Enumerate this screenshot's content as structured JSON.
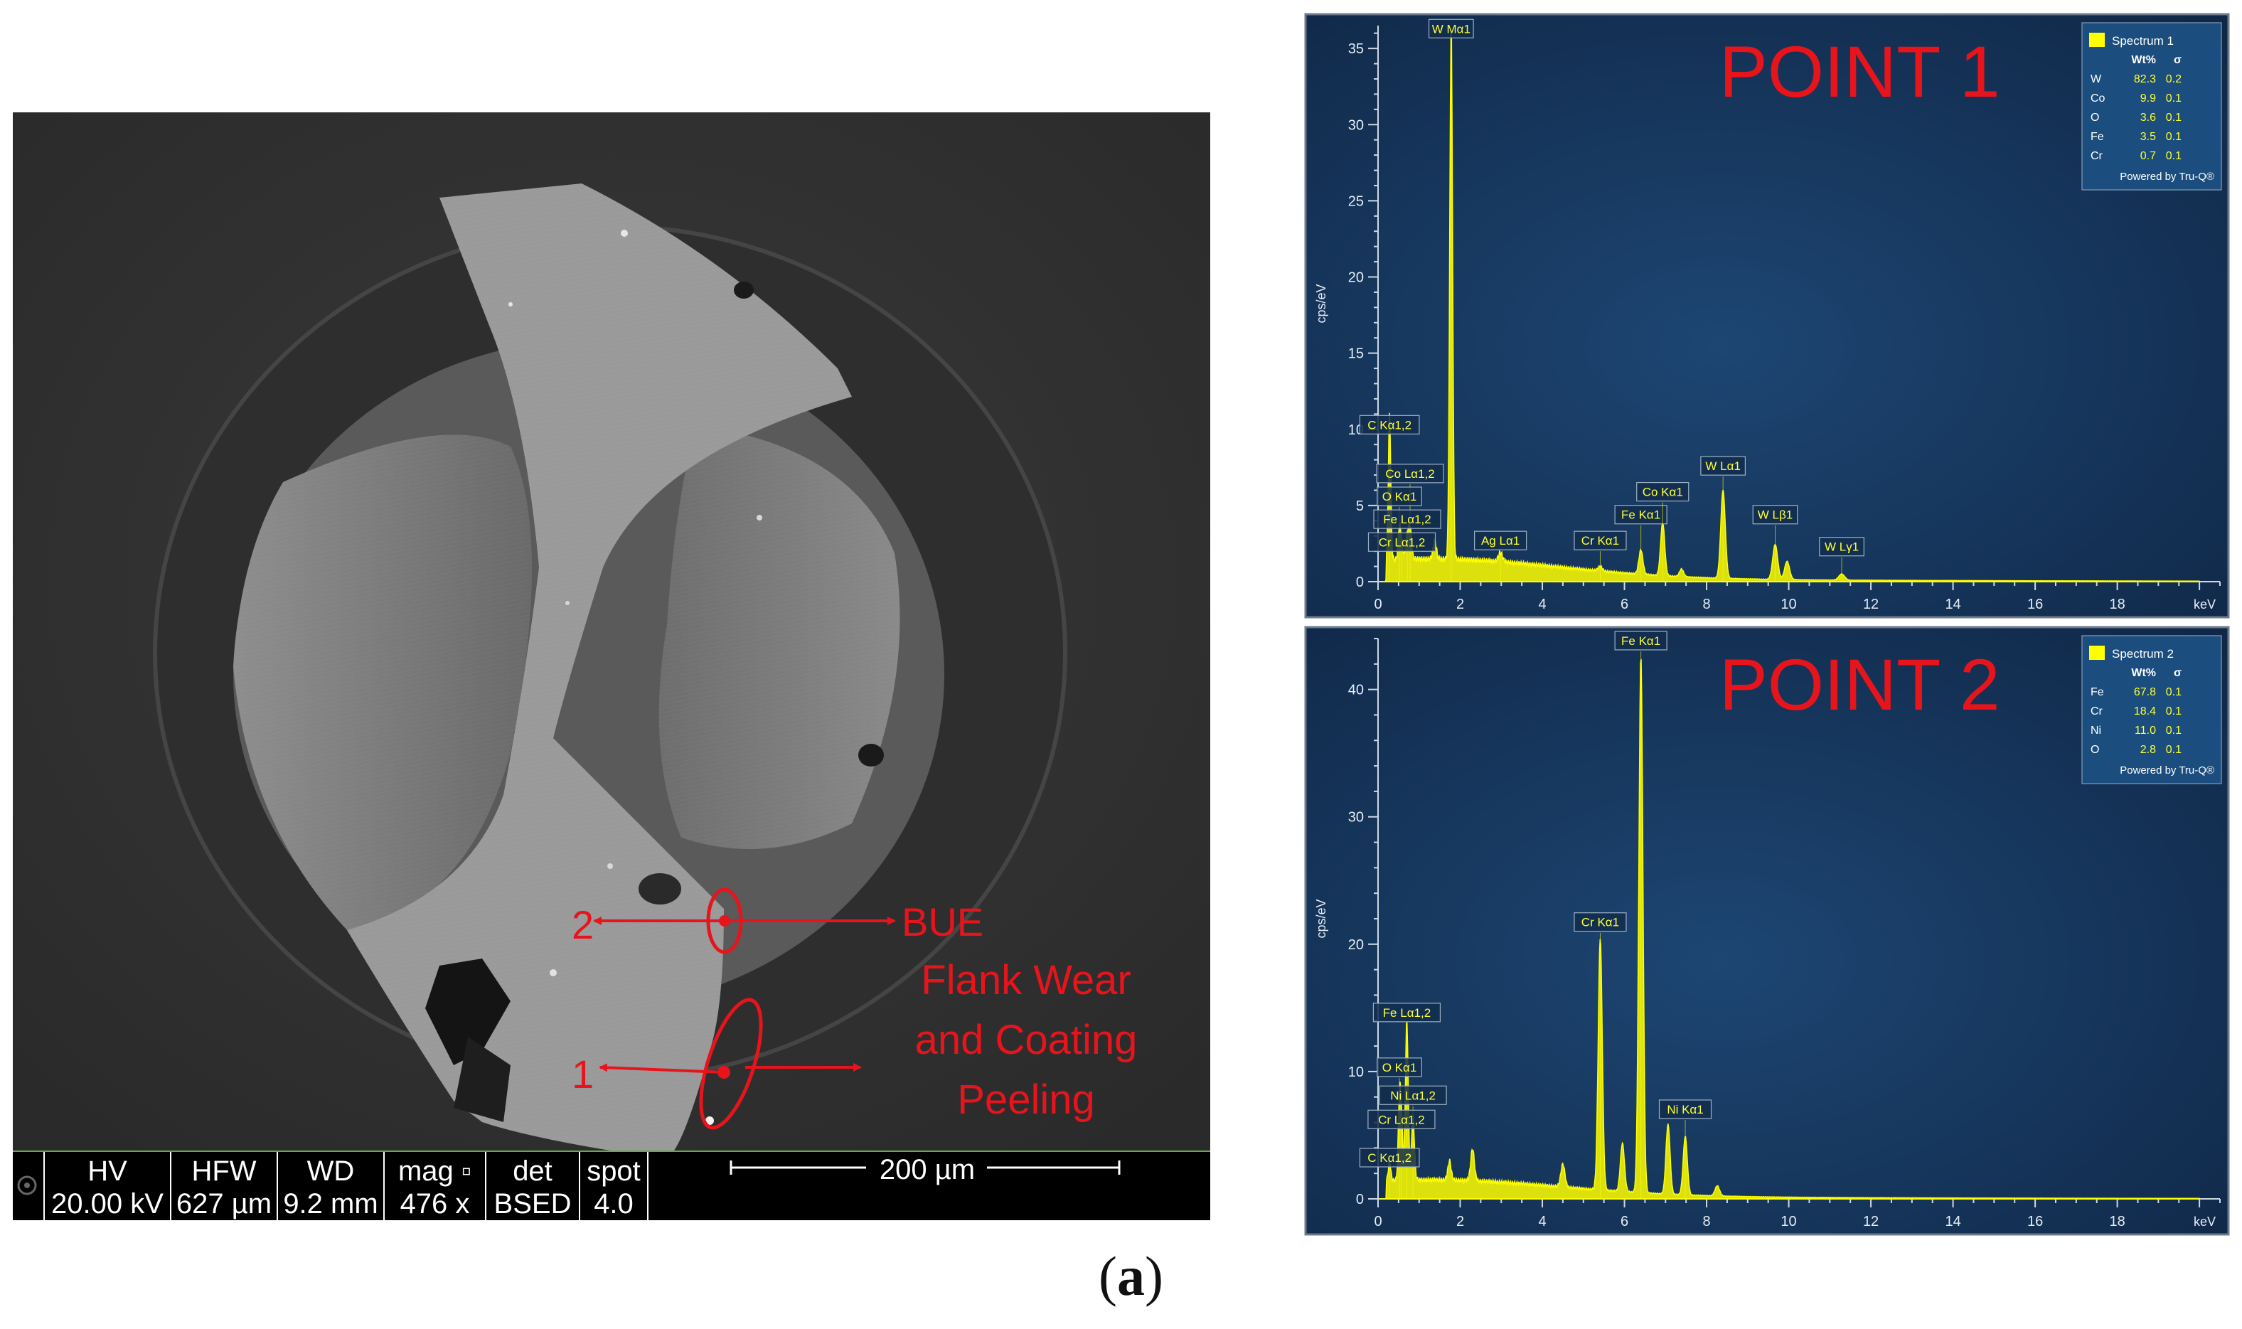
{
  "sem": {
    "labels": {
      "point2": "2",
      "point1": "1",
      "bue": "BUE",
      "flank_line1": "Flank Wear",
      "flank_line2": "and Coating",
      "flank_line3": "Peeling"
    },
    "databar": {
      "columns": [
        {
          "header": "HV",
          "value": "20.00 kV"
        },
        {
          "header": "HFW",
          "value": "627 µm"
        },
        {
          "header": "WD",
          "value": "9.2 mm"
        },
        {
          "header": "mag ▫",
          "value": "476 x"
        },
        {
          "header": "det",
          "value": "BSED"
        },
        {
          "header": "spot",
          "value": "4.0"
        }
      ],
      "scale_bar": "200 µm"
    },
    "annotation_color": "#e8141c"
  },
  "caption": {
    "text": "a"
  },
  "chart_data": [
    {
      "type": "line",
      "title": "POINT 1",
      "ylabel": "cps/eV",
      "xunit": "keV",
      "xlim": [
        0,
        20.5
      ],
      "ylim": [
        0,
        36.5
      ],
      "xticks": [
        0,
        2,
        4,
        6,
        8,
        10,
        12,
        14,
        16,
        18
      ],
      "yticks": [
        0,
        5,
        10,
        15,
        20,
        25,
        30,
        35
      ],
      "line_color": "#ffff00",
      "background": "#17385f",
      "legend": {
        "name": "Spectrum 1",
        "header": [
          "Wt%",
          "σ"
        ],
        "rows": [
          {
            "el": "W",
            "wt": "82.3",
            "sigma": "0.2"
          },
          {
            "el": "Co",
            "wt": "9.9",
            "sigma": "0.1"
          },
          {
            "el": "O",
            "wt": "3.6",
            "sigma": "0.1"
          },
          {
            "el": "Fe",
            "wt": "3.5",
            "sigma": "0.1"
          },
          {
            "el": "Cr",
            "wt": "0.7",
            "sigma": "0.1"
          }
        ],
        "footer": "Powered by Tru-Q®"
      },
      "peaks": [
        {
          "x": 0.28,
          "y": 9.5,
          "w": 0.03
        },
        {
          "x": 0.52,
          "y": 2.2,
          "w": 0.03
        },
        {
          "x": 0.58,
          "y": 1.0,
          "w": 0.03
        },
        {
          "x": 0.71,
          "y": 1.5,
          "w": 0.035
        },
        {
          "x": 0.78,
          "y": 2.0,
          "w": 0.035
        },
        {
          "x": 1.38,
          "y": 1.2,
          "w": 0.04
        },
        {
          "x": 1.78,
          "y": 35.2,
          "w": 0.035
        },
        {
          "x": 2.98,
          "y": 0.6,
          "w": 0.05
        },
        {
          "x": 5.41,
          "y": 0.3,
          "w": 0.05
        },
        {
          "x": 6.4,
          "y": 1.6,
          "w": 0.05
        },
        {
          "x": 6.93,
          "y": 3.5,
          "w": 0.05
        },
        {
          "x": 7.39,
          "y": 0.5,
          "w": 0.05
        },
        {
          "x": 8.4,
          "y": 5.8,
          "w": 0.055
        },
        {
          "x": 9.67,
          "y": 2.3,
          "w": 0.06
        },
        {
          "x": 9.96,
          "y": 1.2,
          "w": 0.06
        },
        {
          "x": 11.29,
          "y": 0.4,
          "w": 0.07
        }
      ],
      "peak_labels": [
        {
          "text": "C Kα1,2",
          "x": 0.28,
          "y": 9.6
        },
        {
          "text": "Co Lα1,2",
          "x": 0.78,
          "y": 6.4
        },
        {
          "text": "O Kα1",
          "x": 0.52,
          "y": 4.9
        },
        {
          "text": "Fe Lα1,2",
          "x": 0.71,
          "y": 3.4
        },
        {
          "text": "Cr Lα1,2",
          "x": 0.58,
          "y": 1.9
        },
        {
          "text": "W Mα1",
          "x": 1.78,
          "y": 35.6
        },
        {
          "text": "Ag Lα1",
          "x": 2.98,
          "y": 2.0
        },
        {
          "text": "Cr Kα1",
          "x": 5.41,
          "y": 2.0
        },
        {
          "text": "Fe Kα1",
          "x": 6.4,
          "y": 3.7
        },
        {
          "text": "Co Kα1",
          "x": 6.93,
          "y": 5.2
        },
        {
          "text": "W Lα1",
          "x": 8.4,
          "y": 6.9
        },
        {
          "text": "W Lβ1",
          "x": 9.67,
          "y": 3.7
        },
        {
          "text": "W Lγ1",
          "x": 11.29,
          "y": 1.6
        }
      ]
    },
    {
      "type": "line",
      "title": "POINT 2",
      "ylabel": "cps/eV",
      "xunit": "keV",
      "xlim": [
        0,
        20.5
      ],
      "ylim": [
        0,
        44
      ],
      "xticks": [
        0,
        2,
        4,
        6,
        8,
        10,
        12,
        14,
        16,
        18
      ],
      "yticks": [
        0,
        10,
        20,
        30,
        40
      ],
      "line_color": "#ffff00",
      "background": "#17385f",
      "legend": {
        "name": "Spectrum 2",
        "header": [
          "Wt%",
          "σ"
        ],
        "rows": [
          {
            "el": "Fe",
            "wt": "67.8",
            "sigma": "0.1"
          },
          {
            "el": "Cr",
            "wt": "18.4",
            "sigma": "0.1"
          },
          {
            "el": "Ni",
            "wt": "11.0",
            "sigma": "0.1"
          },
          {
            "el": "O",
            "wt": "2.8",
            "sigma": "0.1"
          }
        ],
        "footer": "Powered by Tru-Q®"
      },
      "peaks": [
        {
          "x": 0.28,
          "y": 1.5,
          "w": 0.03
        },
        {
          "x": 0.52,
          "y": 6.0,
          "w": 0.03
        },
        {
          "x": 0.57,
          "y": 4.5,
          "w": 0.03
        },
        {
          "x": 0.7,
          "y": 12.5,
          "w": 0.035
        },
        {
          "x": 0.85,
          "y": 5.0,
          "w": 0.035
        },
        {
          "x": 1.74,
          "y": 1.5,
          "w": 0.04
        },
        {
          "x": 2.3,
          "y": 2.5,
          "w": 0.045
        },
        {
          "x": 4.5,
          "y": 1.8,
          "w": 0.05
        },
        {
          "x": 5.41,
          "y": 19.8,
          "w": 0.05
        },
        {
          "x": 5.95,
          "y": 3.8,
          "w": 0.05
        },
        {
          "x": 6.4,
          "y": 42.2,
          "w": 0.05
        },
        {
          "x": 7.06,
          "y": 5.5,
          "w": 0.05
        },
        {
          "x": 7.48,
          "y": 4.6,
          "w": 0.05
        },
        {
          "x": 8.26,
          "y": 0.8,
          "w": 0.055
        }
      ],
      "peak_labels": [
        {
          "text": "Fe Lα1,2",
          "x": 0.7,
          "y": 13.8
        },
        {
          "text": "O Kα1",
          "x": 0.52,
          "y": 9.5
        },
        {
          "text": "Ni Lα1,2",
          "x": 0.85,
          "y": 7.3
        },
        {
          "text": "Cr Lα1,2",
          "x": 0.57,
          "y": 5.4
        },
        {
          "text": "C Kα1,2",
          "x": 0.28,
          "y": 2.4
        },
        {
          "text": "Cr Kα1",
          "x": 5.41,
          "y": 20.9
        },
        {
          "text": "Fe Kα1",
          "x": 6.4,
          "y": 43.0
        },
        {
          "text": "Ni Kα1",
          "x": 7.48,
          "y": 6.2
        }
      ]
    }
  ]
}
